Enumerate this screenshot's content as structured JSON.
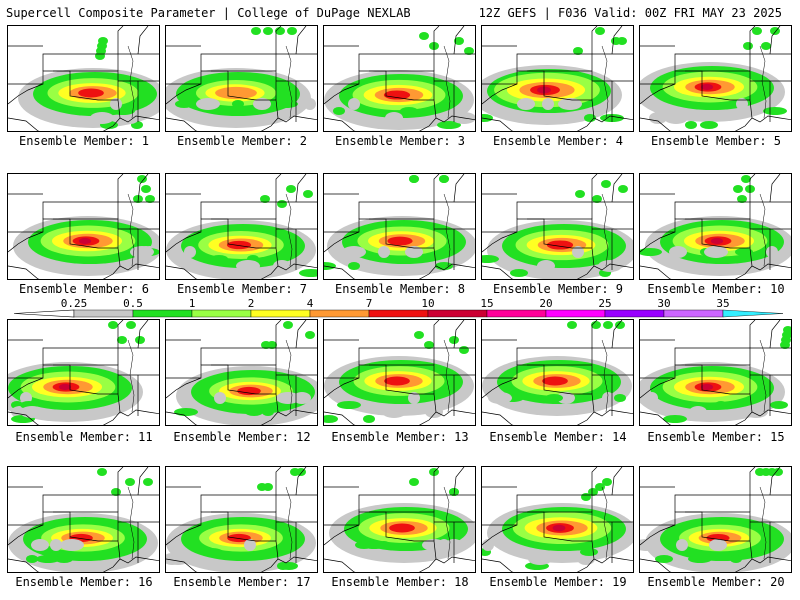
{
  "header": {
    "title": "Supercell Composite Parameter | College of DuPage NEXLAB",
    "run_info": "12Z GEFS | F036 Valid: 00Z FRI MAY 23 2025"
  },
  "panel_label_prefix": "Ensemble Member: ",
  "members": [
    {
      "label": "Ensemble Member: 1",
      "core": [
        85,
        68
      ],
      "intensity": 2.2
    },
    {
      "label": "Ensemble Member: 2",
      "core": [
        70,
        68
      ],
      "intensity": 1.6
    },
    {
      "label": "Ensemble Member: 3",
      "core": [
        75,
        70
      ],
      "intensity": 2.3
    },
    {
      "label": "Ensemble Member: 4",
      "core": [
        65,
        65
      ],
      "intensity": 3.0
    },
    {
      "label": "Ensemble Member: 5",
      "core": [
        70,
        62
      ],
      "intensity": 2.4
    },
    {
      "label": "Ensemble Member: 6",
      "core": [
        80,
        68
      ],
      "intensity": 2.4
    },
    {
      "label": "Ensemble Member: 7",
      "core": [
        75,
        72
      ],
      "intensity": 1.9
    },
    {
      "label": "Ensemble Member: 8",
      "core": [
        78,
        68
      ],
      "intensity": 2.1
    },
    {
      "label": "Ensemble Member: 9",
      "core": [
        80,
        72
      ],
      "intensity": 2.3
    },
    {
      "label": "Ensemble Member: 10",
      "core": [
        80,
        68
      ],
      "intensity": 2.4
    },
    {
      "label": "Ensemble Member: 11",
      "core": [
        60,
        68
      ],
      "intensity": 2.4
    },
    {
      "label": "Ensemble Member: 12",
      "core": [
        85,
        72
      ],
      "intensity": 1.8
    },
    {
      "label": "Ensemble Member: 13",
      "core": [
        75,
        62
      ],
      "intensity": 2.2
    },
    {
      "label": "Ensemble Member: 14",
      "core": [
        75,
        62
      ],
      "intensity": 2.2
    },
    {
      "label": "Ensemble Member: 15",
      "core": [
        70,
        68
      ],
      "intensity": 2.4
    },
    {
      "label": "Ensemble Member: 16",
      "core": [
        75,
        72
      ],
      "intensity": 1.8
    },
    {
      "label": "Ensemble Member: 17",
      "core": [
        75,
        72
      ],
      "intensity": 1.8
    },
    {
      "label": "Ensemble Member: 18",
      "core": [
        80,
        62
      ],
      "intensity": 2.2
    },
    {
      "label": "Ensemble Member: 19",
      "core": [
        80,
        62
      ],
      "intensity": 2.6
    },
    {
      "label": "Ensemble Member: 20",
      "core": [
        80,
        72
      ],
      "intensity": 1.7
    }
  ],
  "colorbar": {
    "tick_labels": [
      "0.25",
      "0.5",
      "1",
      "2",
      "4",
      "7",
      "10",
      "15",
      "20",
      "25",
      "30",
      "35"
    ],
    "colors": [
      "#c8c8c8",
      "#22e022",
      "#99ff44",
      "#ffff22",
      "#ff9933",
      "#ee1111",
      "#cc0033",
      "#ff0099",
      "#ff00ff",
      "#9900ff",
      "#cc66ff",
      "#33eeff"
    ]
  }
}
